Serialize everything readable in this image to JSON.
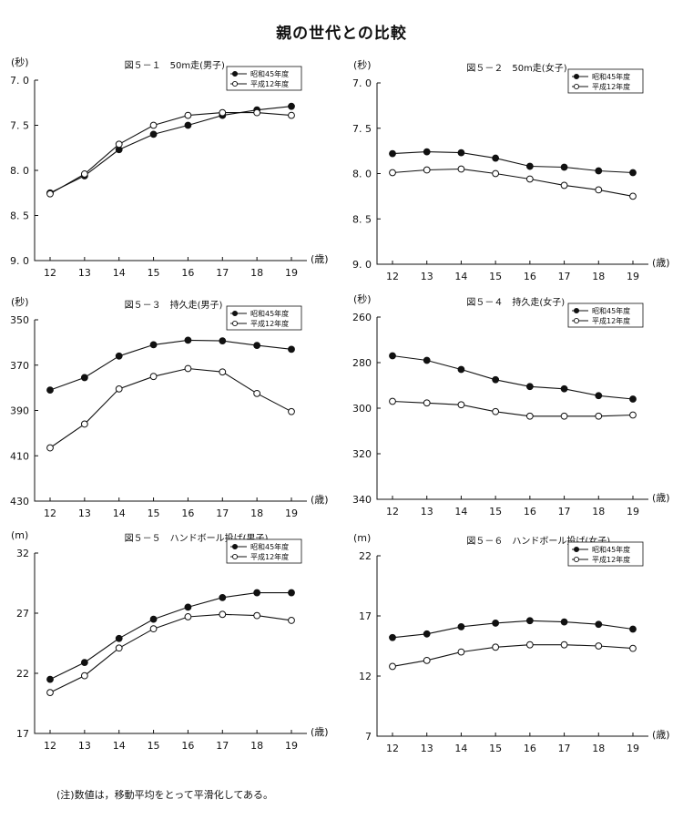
{
  "page": {
    "title": "親の世代との比較",
    "note": "(注)数値は，移動平均をとって平滑化してある。"
  },
  "legend_labels": [
    "昭和45年度",
    "平成12年度"
  ],
  "chart_data": [
    {
      "type": "line",
      "title": "図５－１　50m走(男子)",
      "y_unit_label": "(秒)",
      "x_unit_label": "(歳)",
      "y_reversed": true,
      "ylim": [
        7.0,
        9.0
      ],
      "yticks": [
        7.0,
        7.5,
        8.0,
        8.5,
        9.0
      ],
      "ytick_labels": [
        "7. 0",
        "7. 5",
        "8. 0",
        "8. 5",
        "9. 0"
      ],
      "x": [
        12,
        13,
        14,
        15,
        16,
        17,
        18,
        19
      ],
      "series": [
        {
          "name": "昭和45年度",
          "marker": "filled",
          "values": [
            8.25,
            8.06,
            7.77,
            7.6,
            7.5,
            7.39,
            7.33,
            7.29
          ]
        },
        {
          "name": "平成12年度",
          "marker": "open",
          "values": [
            8.26,
            8.04,
            7.71,
            7.5,
            7.39,
            7.36,
            7.36,
            7.39
          ]
        }
      ]
    },
    {
      "type": "line",
      "title": "図５－２　50m走(女子)",
      "y_unit_label": "(秒)",
      "x_unit_label": "(歳)",
      "y_reversed": true,
      "ylim": [
        7.0,
        9.0
      ],
      "yticks": [
        7.0,
        7.5,
        8.0,
        8.5,
        9.0
      ],
      "ytick_labels": [
        "7. 0",
        "7. 5",
        "8. 0",
        "8. 5",
        "9. 0"
      ],
      "x": [
        12,
        13,
        14,
        15,
        16,
        17,
        18,
        19
      ],
      "series": [
        {
          "name": "昭和45年度",
          "marker": "filled",
          "values": [
            7.78,
            7.76,
            7.77,
            7.83,
            7.92,
            7.93,
            7.97,
            7.99
          ]
        },
        {
          "name": "平成12年度",
          "marker": "open",
          "values": [
            7.99,
            7.96,
            7.95,
            8.0,
            8.06,
            8.13,
            8.18,
            8.25
          ]
        }
      ]
    },
    {
      "type": "line",
      "title": "図５－３　持久走(男子)",
      "y_unit_label": "(秒)",
      "x_unit_label": "(歳)",
      "y_reversed": true,
      "ylim": [
        350,
        430
      ],
      "yticks": [
        350,
        370,
        390,
        410,
        430
      ],
      "ytick_labels": [
        "350",
        "370",
        "390",
        "410",
        "430"
      ],
      "x": [
        12,
        13,
        14,
        15,
        16,
        17,
        18,
        19
      ],
      "series": [
        {
          "name": "昭和45年度",
          "marker": "filled",
          "values": [
            381,
            375.5,
            366,
            361,
            359,
            359.3,
            361.3,
            363
          ]
        },
        {
          "name": "平成12年度",
          "marker": "open",
          "values": [
            406.5,
            396,
            380.5,
            375,
            371.5,
            373,
            382.5,
            390.5
          ]
        }
      ]
    },
    {
      "type": "line",
      "title": "図５－４　持久走(女子)",
      "y_unit_label": "(秒)",
      "x_unit_label": "(歳)",
      "y_reversed": true,
      "ylim": [
        260,
        340
      ],
      "yticks": [
        260,
        280,
        300,
        320,
        340
      ],
      "ytick_labels": [
        "260",
        "280",
        "300",
        "320",
        "340"
      ],
      "x": [
        12,
        13,
        14,
        15,
        16,
        17,
        18,
        19
      ],
      "series": [
        {
          "name": "昭和45年度",
          "marker": "filled",
          "values": [
            277,
            279,
            283,
            287.5,
            290.5,
            291.5,
            294.5,
            296
          ]
        },
        {
          "name": "平成12年度",
          "marker": "open",
          "values": [
            297,
            297.7,
            298.5,
            301.5,
            303.5,
            303.5,
            303.5,
            303
          ]
        }
      ]
    },
    {
      "type": "line",
      "title": "図５－５　ハンドボール投げ(男子)",
      "y_unit_label": "(m)",
      "x_unit_label": "(歳)",
      "y_reversed": false,
      "ylim": [
        17,
        32
      ],
      "yticks": [
        17,
        22,
        27,
        32
      ],
      "ytick_labels": [
        "17",
        "22",
        "27",
        "32"
      ],
      "x": [
        12,
        13,
        14,
        15,
        16,
        17,
        18,
        19
      ],
      "series": [
        {
          "name": "昭和45年度",
          "marker": "filled",
          "values": [
            21.5,
            22.9,
            24.9,
            26.5,
            27.5,
            28.3,
            28.7,
            28.7
          ]
        },
        {
          "name": "平成12年度",
          "marker": "open",
          "values": [
            20.4,
            21.8,
            24.1,
            25.7,
            26.7,
            26.9,
            26.8,
            26.4
          ]
        }
      ]
    },
    {
      "type": "line",
      "title": "図５－６　ハンドボール投げ(女子)",
      "y_unit_label": "(m)",
      "x_unit_label": "(歳)",
      "y_reversed": false,
      "ylim": [
        7,
        22
      ],
      "yticks": [
        7,
        12,
        17,
        22
      ],
      "ytick_labels": [
        "7",
        "12",
        "17",
        "22"
      ],
      "x": [
        12,
        13,
        14,
        15,
        16,
        17,
        18,
        19
      ],
      "series": [
        {
          "name": "昭和45年度",
          "marker": "filled",
          "values": [
            15.2,
            15.5,
            16.1,
            16.4,
            16.6,
            16.5,
            16.3,
            15.9
          ]
        },
        {
          "name": "平成12年度",
          "marker": "open",
          "values": [
            12.8,
            13.3,
            14.0,
            14.4,
            14.6,
            14.6,
            14.5,
            14.3
          ]
        }
      ]
    }
  ]
}
